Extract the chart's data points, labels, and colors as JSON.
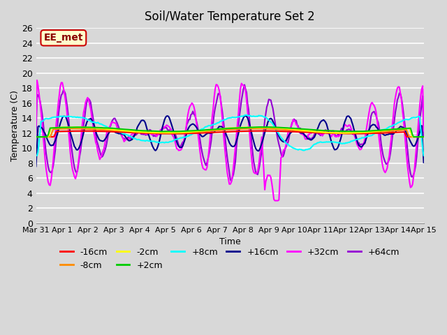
{
  "title": "Soil/Water Temperature Set 2",
  "xlabel": "Time",
  "ylabel": "Temperature (C)",
  "ylim": [
    0,
    26
  ],
  "yticks": [
    0,
    2,
    4,
    6,
    8,
    10,
    12,
    14,
    16,
    18,
    20,
    22,
    24,
    26
  ],
  "background_color": "#d8d8d8",
  "plot_bg_color": "#d8d8d8",
  "annotation_text": "EE_met",
  "annotation_bg": "#ffffcc",
  "annotation_border": "#cc0000",
  "series_colors": {
    "-16cm": "#ff0000",
    "-8cm": "#ff8c00",
    "-2cm": "#ffff00",
    "+2cm": "#00cc00",
    "+8cm": "#00ffff",
    "+16cm": "#00008b",
    "+32cm": "#ff00ff",
    "+64cm": "#9400d3"
  },
  "x_labels": [
    "Mar 31",
    "Apr 1",
    "Apr 2",
    "Apr 3",
    "Apr 4",
    "Apr 5",
    "Apr 6",
    "Apr 7",
    "Apr 8",
    "Apr 9",
    "Apr 10",
    "Apr 11",
    "Apr 12",
    "Apr 13",
    "Apr 14",
    "Apr 15"
  ],
  "x_tick_positions": [
    0,
    1,
    2,
    3,
    4,
    5,
    6,
    7,
    8,
    9,
    10,
    11,
    12,
    13,
    14,
    15
  ]
}
